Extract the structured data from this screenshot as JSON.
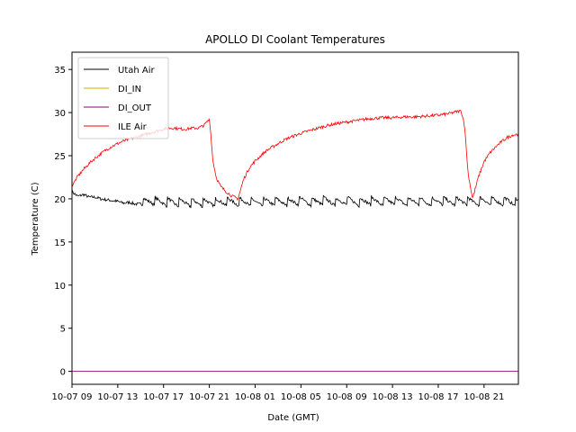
{
  "chart_data": {
    "type": "line",
    "title": "APOLLO DI Coolant Temperatures",
    "xlabel": "Date (GMT)",
    "ylabel": "Temperature (C)",
    "x_unit": "hours since 10-07 09",
    "xlim": [
      0,
      39
    ],
    "ylim": [
      -1.5,
      37
    ],
    "yticks": [
      0,
      5,
      10,
      15,
      20,
      25,
      30,
      35
    ],
    "xticks": [
      {
        "x": 0,
        "label": "10-07 09"
      },
      {
        "x": 4,
        "label": "10-07 13"
      },
      {
        "x": 8,
        "label": "10-07 17"
      },
      {
        "x": 12,
        "label": "10-07 21"
      },
      {
        "x": 16,
        "label": "10-08 01"
      },
      {
        "x": 20,
        "label": "10-08 05"
      },
      {
        "x": 24,
        "label": "10-08 09"
      },
      {
        "x": 28,
        "label": "10-08 13"
      },
      {
        "x": 32,
        "label": "10-08 17"
      },
      {
        "x": 36,
        "label": "10-08 21"
      }
    ],
    "legend_position": "top-left",
    "series": [
      {
        "name": "Utah Air",
        "color": "#000000",
        "x": [
          0,
          0.5,
          1,
          1.5,
          2,
          2.5,
          3,
          3.5,
          4,
          4.5,
          5,
          5.5,
          6,
          6.5,
          7,
          7.5,
          8,
          8.5,
          9,
          10,
          11,
          12,
          13,
          14,
          15,
          16,
          17,
          18,
          19,
          20,
          21,
          22,
          23,
          24,
          25,
          26,
          27,
          28,
          29,
          30,
          31,
          32,
          33,
          34,
          35,
          36,
          37,
          38,
          39
        ],
        "y": [
          20.8,
          20.3,
          20.5,
          20.2,
          20.2,
          20.0,
          19.9,
          19.8,
          19.7,
          19.5,
          19.6,
          19.4,
          19.4,
          19.3,
          19.4,
          19.3,
          19.3,
          19.3,
          19.2,
          19.2,
          19.2,
          19.2,
          19.3,
          19.3,
          19.3,
          19.2,
          19.3,
          19.3,
          19.3,
          19.4,
          19.3,
          19.4,
          19.3,
          19.4,
          19.3,
          19.4,
          19.3,
          19.4,
          19.3,
          19.4,
          19.3,
          19.4,
          19.3,
          19.4,
          19.3,
          19.4,
          19.3,
          19.4,
          19.2
        ],
        "sawtooth": {
          "start": 6.2,
          "end": 39,
          "period": 1.05,
          "amplitude": 1.0
        }
      },
      {
        "name": "DI_IN",
        "color": "#d4a900",
        "x": [
          0,
          39
        ],
        "y": [
          0,
          0
        ]
      },
      {
        "name": "DI_OUT",
        "color": "#8b008b",
        "x": [
          0,
          39
        ],
        "y": [
          0,
          0
        ]
      },
      {
        "name": "ILE Air",
        "color": "#ff0000",
        "x": [
          0,
          0.5,
          1,
          1.5,
          2,
          2.5,
          3,
          3.5,
          4,
          4.5,
          5,
          5.5,
          6,
          6.5,
          7,
          7.5,
          8,
          8.5,
          9,
          9.5,
          10,
          10.5,
          11,
          11.5,
          12,
          12.1,
          12.3,
          12.6,
          13,
          13.5,
          14,
          14.5,
          15,
          15.5,
          16,
          16.5,
          17,
          17.5,
          18,
          18.5,
          19,
          20,
          21,
          22,
          23,
          24,
          25,
          26,
          27,
          28,
          29,
          30,
          31,
          32,
          33,
          33.6,
          34,
          34.3,
          34.6,
          35,
          35.5,
          36,
          36.5,
          37,
          37.5,
          38,
          38.5,
          39
        ],
        "y": [
          21.5,
          22.6,
          23.4,
          24.1,
          24.7,
          25.2,
          25.7,
          26.1,
          26.4,
          26.7,
          26.9,
          27.1,
          27.3,
          27.5,
          27.7,
          27.9,
          28.1,
          28.2,
          28.2,
          28.1,
          28.1,
          28.2,
          28.2,
          28.5,
          29.2,
          28.0,
          24.5,
          22.5,
          21.4,
          20.8,
          20.3,
          20.0,
          22.3,
          23.6,
          24.4,
          25.0,
          25.6,
          26.0,
          26.4,
          26.8,
          27.1,
          27.6,
          28.0,
          28.4,
          28.7,
          28.9,
          29.1,
          29.3,
          29.4,
          29.4,
          29.5,
          29.5,
          29.6,
          29.7,
          29.9,
          30.1,
          30.2,
          28.5,
          23.0,
          20.0,
          22.5,
          24.3,
          25.3,
          26.0,
          26.6,
          27.1,
          27.4,
          27.5
        ]
      }
    ]
  }
}
